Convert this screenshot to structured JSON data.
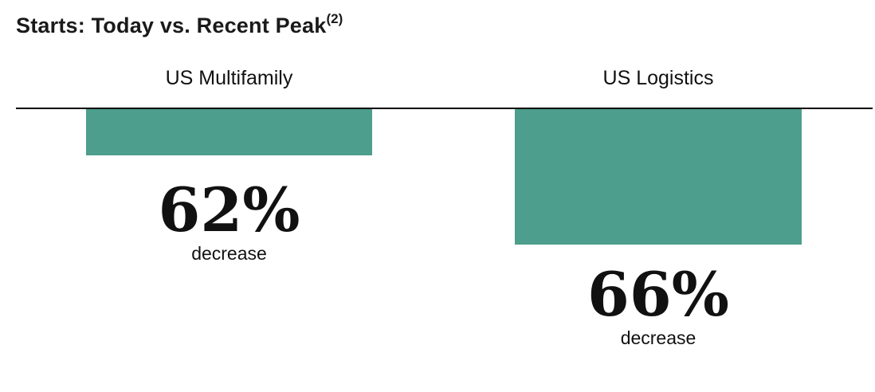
{
  "page": {
    "background_color": "#ffffff",
    "text_color": "#111111"
  },
  "chart_data": {
    "type": "bar",
    "title": "Starts: Today vs. Recent Peak",
    "title_superscript": "(2)",
    "orientation": "columns-extending-below-baseline",
    "bar_color": "#4D9E8C",
    "baseline_color": "#000000",
    "legend": "none",
    "grid": "off",
    "categories": [
      "US Multifamily",
      "US Logistics"
    ],
    "series": [
      {
        "name": "Decrease in starts vs. recent peak",
        "values": [
          -62,
          -66
        ]
      }
    ],
    "columns": [
      {
        "header": "US Multifamily",
        "value_pct": 62,
        "value_label": "62%",
        "sublabel": "decrease"
      },
      {
        "header": "US Logistics",
        "value_pct": 66,
        "value_label": "66%",
        "sublabel": "decrease"
      }
    ]
  }
}
